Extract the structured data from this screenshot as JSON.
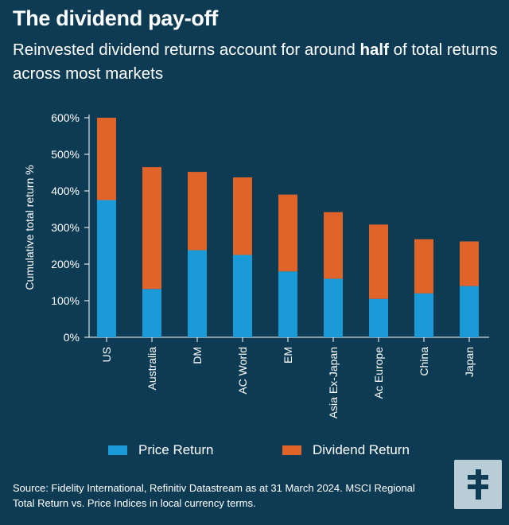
{
  "header": {
    "title": "The dividend pay-off",
    "subtitle_before": "Reinvested dividend returns account for around ",
    "subtitle_bold": "half",
    "subtitle_after": " of total returns across most markets"
  },
  "chart_data": {
    "type": "bar",
    "stacked": true,
    "title": "The dividend pay-off",
    "xlabel": "",
    "ylabel": "Cumulative total return %",
    "ylim": [
      0,
      600
    ],
    "yticks": [
      0,
      100,
      200,
      300,
      400,
      500,
      600
    ],
    "ytick_labels": [
      "0%",
      "100%",
      "200%",
      "300%",
      "400%",
      "500%",
      "600%"
    ],
    "categories": [
      "US",
      "Australia",
      "DM",
      "AC World",
      "EM",
      "Asia Ex-Japan",
      "Ac Europe",
      "China",
      "Japan"
    ],
    "series": [
      {
        "name": "Price Return",
        "color": "#1a9ad6",
        "values": [
          375,
          132,
          238,
          225,
          180,
          160,
          105,
          120,
          140
        ]
      },
      {
        "name": "Dividend Return",
        "color": "#e0642a",
        "values": [
          225,
          333,
          214,
          212,
          210,
          182,
          203,
          148,
          122
        ]
      }
    ],
    "legend_position": "bottom"
  },
  "legend": {
    "price_label": "Price Return",
    "dividend_label": "Dividend Return"
  },
  "source": {
    "text": "Source: Fidelity International, Refinitiv Datastream as at 31 March 2024. MSCI Regional Total Return vs. Price Indices in local currency terms."
  },
  "logo": {
    "icon": "fidelity-logo-icon"
  }
}
